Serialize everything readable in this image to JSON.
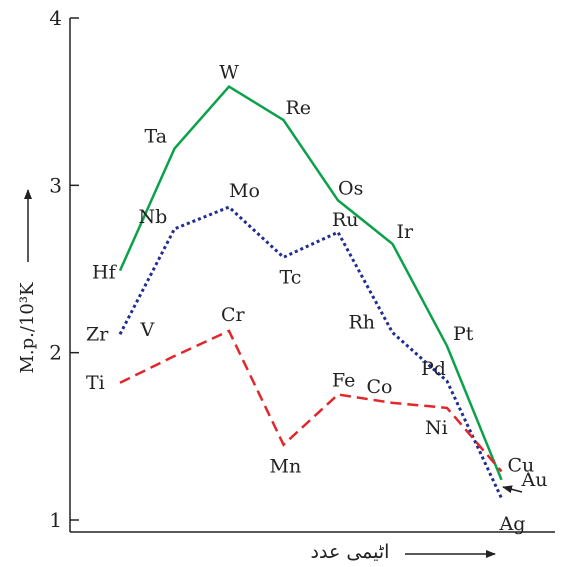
{
  "chart_data": {
    "type": "line",
    "xlabel": "اٹیمی عدد",
    "ylabel": "M.p./10³K",
    "ylim": [
      1,
      4
    ],
    "yticks": [
      "1",
      "2",
      "3",
      "4"
    ],
    "grid": false,
    "series": [
      {
        "color": "#0aa14a",
        "dash": "solid",
        "points": [
          {
            "label": "Hf",
            "x": 1,
            "y": 2.49
          },
          {
            "label": "Ta",
            "x": 2,
            "y": 3.22
          },
          {
            "label": "W",
            "x": 3,
            "y": 3.59
          },
          {
            "label": "Re",
            "x": 4,
            "y": 3.39
          },
          {
            "label": "Os",
            "x": 5,
            "y": 2.91
          },
          {
            "label": "Ir",
            "x": 6,
            "y": 2.65
          },
          {
            "label": "Pt",
            "x": 7,
            "y": 2.04
          },
          {
            "label": "Au",
            "x": 8,
            "y": 1.24
          }
        ]
      },
      {
        "color": "#1f2e8f",
        "dash": "dotted",
        "points": [
          {
            "label": "Zr",
            "x": 1,
            "y": 2.11
          },
          {
            "label": "Nb",
            "x": 2,
            "y": 2.74
          },
          {
            "label": "Mo",
            "x": 3,
            "y": 2.87
          },
          {
            "label": "Tc",
            "x": 4,
            "y": 2.57
          },
          {
            "label": "Ru",
            "x": 5,
            "y": 2.72
          },
          {
            "label": "Rh",
            "x": 6,
            "y": 2.12
          },
          {
            "label": "Pd",
            "x": 7,
            "y": 1.83
          },
          {
            "label": "Ag",
            "x": 8,
            "y": 1.13
          }
        ]
      },
      {
        "color": "#e3262b",
        "dash": "dashed",
        "points": [
          {
            "label": "Ti",
            "x": 1,
            "y": 1.82
          },
          {
            "label": "V",
            "x": 2,
            "y": 1.98
          },
          {
            "label": "Cr",
            "x": 3,
            "y": 2.13
          },
          {
            "label": "Mn",
            "x": 4,
            "y": 1.45
          },
          {
            "label": "Fe",
            "x": 5,
            "y": 1.75
          },
          {
            "label": "Co",
            "x": 6,
            "y": 1.7
          },
          {
            "label": "Ni",
            "x": 7,
            "y": 1.67
          },
          {
            "label": "Cu",
            "x": 8,
            "y": 1.29
          }
        ]
      }
    ]
  }
}
